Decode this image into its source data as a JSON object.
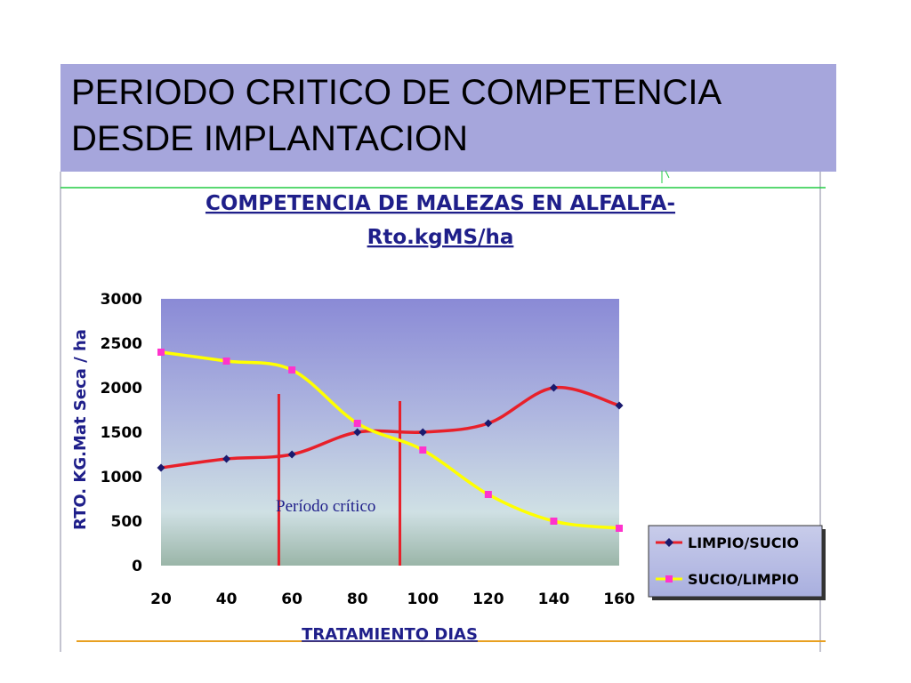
{
  "slide": {
    "title_line1": "PERIODO CRITICO DE COMPETENCIA",
    "title_line2": "DESDE IMPLANTACION"
  },
  "colors": {
    "title_bg": "#a6a6dc",
    "series1_line": "#e8202a",
    "series1_marker": "#1a1a6e",
    "series2_line": "#ffff00",
    "series2_marker": "#ff33cc",
    "critical_lines": "#e8202a",
    "frame_top": "#22cc44",
    "frame_bottom": "#e8a020"
  },
  "chart_data": {
    "type": "line",
    "title_line1": "COMPETENCIA DE MALEZAS EN ALFALFA-",
    "title_line2": "Rto.kgMS/ha",
    "xlabel": "TRATAMIENTO DIAS",
    "ylabel": "RTO. KG.Mat Seca / ha",
    "x": [
      20,
      40,
      60,
      80,
      100,
      120,
      140,
      160
    ],
    "xticks": [
      "20",
      "40",
      "60",
      "80",
      "100",
      "120",
      "140",
      "160"
    ],
    "yticks": [
      "0",
      "500",
      "1000",
      "1500",
      "2000",
      "2500",
      "3000"
    ],
    "ylim": [
      0,
      3000
    ],
    "grid": false,
    "legend_position": "bottom-right",
    "series": [
      {
        "name": "LIMPIO/SUCIO",
        "values": [
          1100,
          1200,
          1250,
          1500,
          1500,
          1600,
          2000,
          1800
        ]
      },
      {
        "name": "SUCIO/LIMPIO",
        "values": [
          2400,
          2300,
          2200,
          1600,
          1300,
          800,
          500,
          420
        ]
      }
    ],
    "critical_period": {
      "label": "Período crítico",
      "start_day": 56,
      "end_day": 93
    }
  }
}
